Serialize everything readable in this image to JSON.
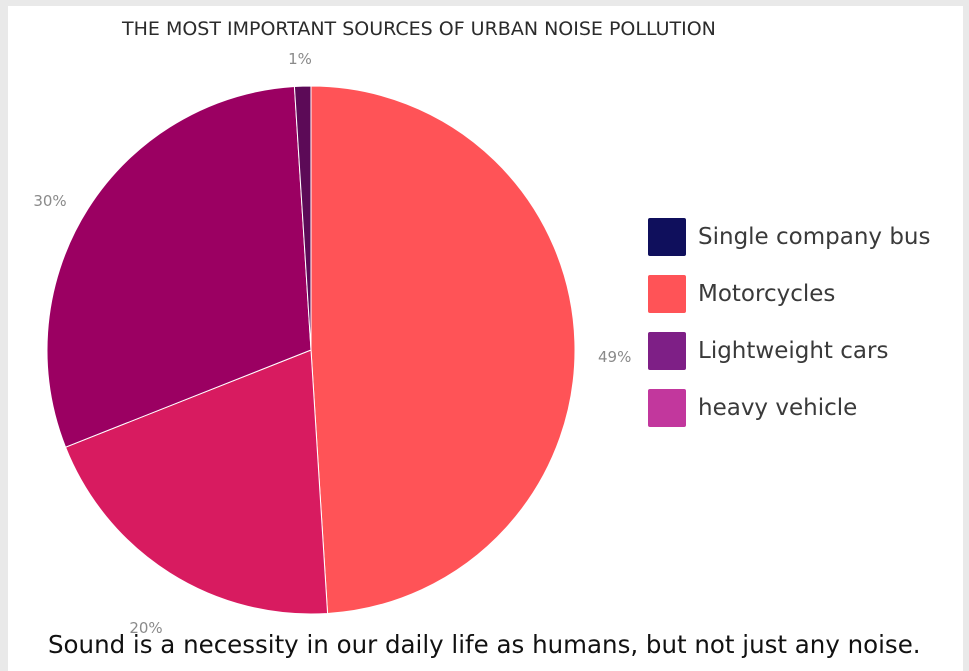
{
  "chart_data": {
    "type": "pie",
    "title": "THE MOST IMPORTANT SOURCES OF URBAN NOISE POLLUTION",
    "slices": [
      {
        "name": "Motorcycles",
        "value": 49,
        "label": "49%",
        "color": "#ff5357"
      },
      {
        "name": "heavy vehicle",
        "value": 20,
        "label": "20%",
        "color": "#d81b60"
      },
      {
        "name": "Lightweight cars",
        "value": 30,
        "label": "30%",
        "color": "#9b0062"
      },
      {
        "name": "Single company bus",
        "value": 1,
        "label": "1%",
        "color": "#5c0a57"
      }
    ],
    "legend": [
      {
        "label": "Single company bus",
        "color": "#0f0f5c"
      },
      {
        "label": "Motorcycles",
        "color": "#ff5357"
      },
      {
        "label": "Lightweight cars",
        "color": "#7e1f86"
      },
      {
        "label": "heavy vehicle",
        "color": "#c2379d"
      }
    ],
    "legend_position": "right"
  },
  "caption": "Sound is a necessity in our daily life as humans, but not just any noise."
}
